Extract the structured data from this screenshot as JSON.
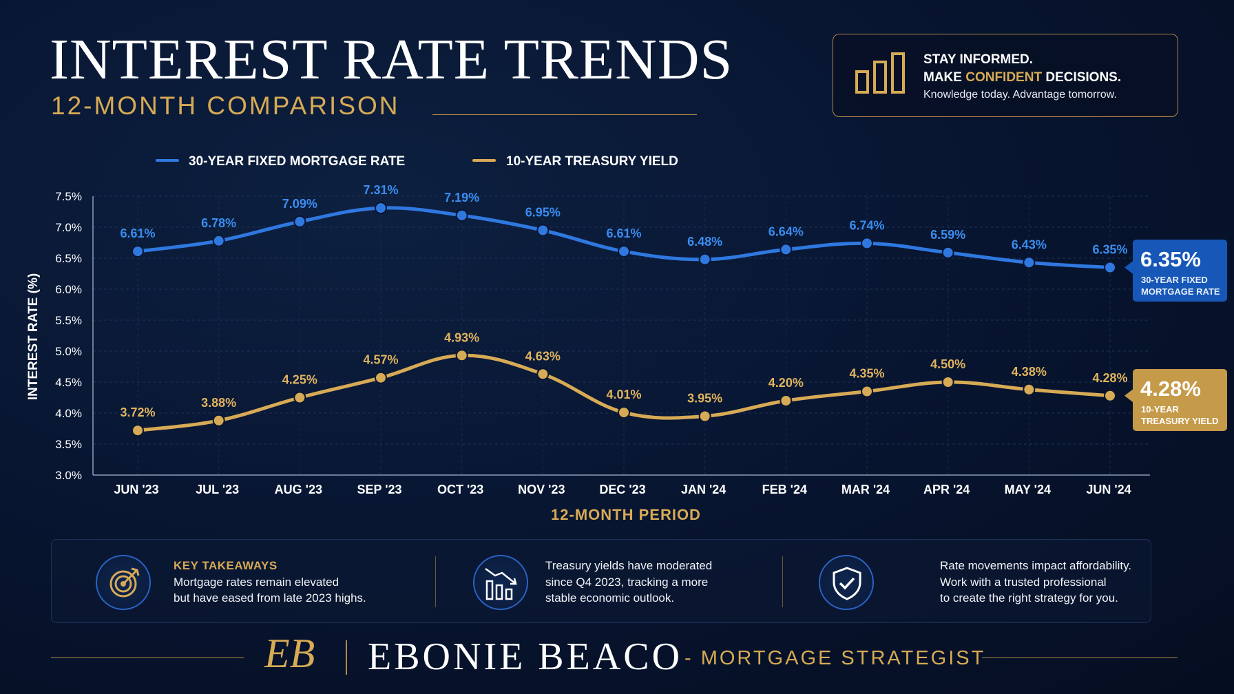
{
  "header": {
    "title": "INTEREST RATE TRENDS",
    "subtitle": "12-MONTH COMPARISON"
  },
  "promo": {
    "line1": "STAY INFORMED.",
    "line2_pre": "MAKE ",
    "line2_highlight": "CONFIDENT",
    "line2_post": " DECISIONS.",
    "line3": "Knowledge today. Advantage tomorrow.",
    "icon": "bar-chart-icon"
  },
  "chart_data": {
    "type": "line",
    "xlabel": "12-MONTH PERIOD",
    "ylabel": "INTEREST RATE (%)",
    "categories": [
      "JUN '23",
      "JUL '23",
      "AUG '23",
      "SEP '23",
      "OCT '23",
      "NOV '23",
      "DEC '23",
      "JAN '24",
      "FEB '24",
      "MAR '24",
      "APR '24",
      "MAY '24",
      "JUN '24"
    ],
    "ylim": [
      3.0,
      7.5
    ],
    "yticks": [
      "3.0%",
      "3.5%",
      "4.0%",
      "4.5%",
      "5.0%",
      "5.5%",
      "6.0%",
      "6.5%",
      "7.0%",
      "7.5%"
    ],
    "yticks_values": [
      3.0,
      3.5,
      4.0,
      4.5,
      5.0,
      5.5,
      6.0,
      6.5,
      7.0,
      7.5
    ],
    "grid": true,
    "legend": "top",
    "series": [
      {
        "name": "30-YEAR FIXED MORTGAGE RATE",
        "color": "#2f78e0",
        "values": [
          6.61,
          6.78,
          7.09,
          7.31,
          7.19,
          6.95,
          6.61,
          6.48,
          6.64,
          6.74,
          6.59,
          6.43,
          6.35
        ],
        "labels": [
          "6.61%",
          "6.78%",
          "7.09%",
          "7.31%",
          "7.19%",
          "6.95%",
          "6.61%",
          "6.48%",
          "6.64%",
          "6.74%",
          "6.59%",
          "6.43%",
          "6.35%"
        ],
        "callout_value": "6.35%",
        "callout_line1": "30-YEAR FIXED",
        "callout_line2": "MORTGAGE RATE"
      },
      {
        "name": "10-YEAR TREASURY YIELD",
        "color": "#d7aa55",
        "values": [
          3.72,
          3.88,
          4.25,
          4.57,
          4.93,
          4.63,
          4.01,
          3.95,
          4.2,
          4.35,
          4.5,
          4.38,
          4.28
        ],
        "labels": [
          "3.72%",
          "3.88%",
          "4.25%",
          "4.57%",
          "4.93%",
          "4.63%",
          "4.01%",
          "3.95%",
          "4.20%",
          "4.35%",
          "4.50%",
          "4.38%",
          "4.28%"
        ],
        "callout_value": "4.28%",
        "callout_line1": "10-YEAR",
        "callout_line2": "TREASURY YIELD"
      }
    ]
  },
  "takeaways": [
    {
      "icon": "target-icon",
      "heading": "KEY TAKEAWAYS",
      "line1": "Mortgage rates remain elevated",
      "line2": "but have eased from late 2023 highs."
    },
    {
      "icon": "declining-bars-icon",
      "line1": "Treasury yields have moderated",
      "line2": "since Q4 2023, tracking a more",
      "line3": "stable economic outlook."
    },
    {
      "icon": "shield-check-icon",
      "line1": "Rate movements impact affordability.",
      "line2": "Work with a trusted professional",
      "line3": "to create the right strategy for you."
    }
  ],
  "footer": {
    "monogram": "EB",
    "name": "EBONIE BEACO",
    "role": "- MORTGAGE STRATEGIST"
  }
}
